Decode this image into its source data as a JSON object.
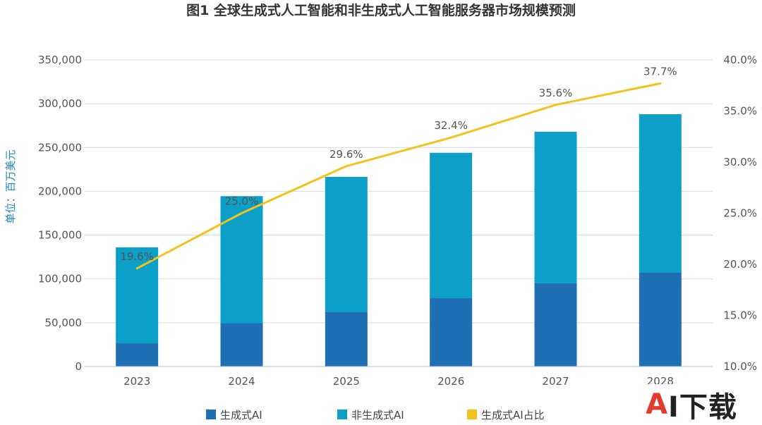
{
  "chart_data": {
    "type": "bar+line",
    "title": "图1 全球生成式人工智能和非生成式人工智能服务器市场规模预测",
    "ylabel": "单位：百万美元",
    "categories": [
      "2023",
      "2024",
      "2025",
      "2026",
      "2027",
      "2028"
    ],
    "stacked": true,
    "series": [
      {
        "name": "生成式AI",
        "type": "bar",
        "axis": "left",
        "color": "#1f6fb5",
        "values": [
          26500,
          49500,
          62500,
          78000,
          95000,
          107000
        ]
      },
      {
        "name": "非生成式AI",
        "type": "bar",
        "axis": "left",
        "color": "#0ca0c8",
        "values": [
          109500,
          145000,
          154000,
          166000,
          173000,
          181000
        ]
      },
      {
        "name": "生成式AI占比",
        "type": "line",
        "axis": "right",
        "color": "#f2c31b",
        "values": [
          19.6,
          25.0,
          29.6,
          32.4,
          35.6,
          37.7
        ],
        "labels": [
          "19.6%",
          "25.0%",
          "29.6%",
          "32.4%",
          "35.6%",
          "37.7%"
        ]
      }
    ],
    "y_left": {
      "min": 0,
      "max": 350000,
      "ticks": [
        0,
        50000,
        100000,
        150000,
        200000,
        250000,
        300000,
        350000
      ],
      "tick_labels": [
        "0",
        "50,000",
        "100,000",
        "150,000",
        "200,000",
        "250,000",
        "300,000",
        "350,000"
      ]
    },
    "y_right": {
      "min": 10,
      "max": 40,
      "ticks": [
        10,
        15,
        20,
        25,
        30,
        35,
        40
      ],
      "tick_labels": [
        "10.0%",
        "15.0%",
        "20.0%",
        "25.0%",
        "30.0%",
        "35.0%",
        "40.0%"
      ]
    },
    "grid": true,
    "legend_position": "bottom"
  },
  "watermark": {
    "a": "A",
    "rest": "I下载"
  }
}
